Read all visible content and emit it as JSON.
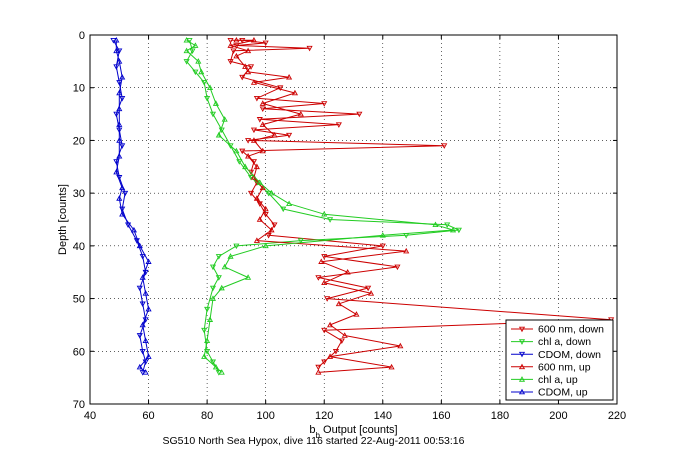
{
  "chart_data": {
    "type": "line",
    "caption": "SG510 North Sea Hypox, dive 116 started 22-Aug-2011 00:53:16",
    "xlabel": "b",
    "xlabel_sub": "b",
    "xlabel_rest": " Output [counts]",
    "ylabel": "Depth [counts]",
    "xlim": [
      40,
      220
    ],
    "ylim": [
      0,
      70
    ],
    "y_reversed": true,
    "grid": true,
    "legend_position": "bottom-right",
    "xticks": [
      "40",
      "60",
      "80",
      "100",
      "120",
      "140",
      "160",
      "180",
      "200",
      "220"
    ],
    "yticks": [
      "0",
      "10",
      "20",
      "30",
      "40",
      "50",
      "60",
      "70"
    ],
    "series": [
      {
        "name": "600 nm, down",
        "color": "#cc0000",
        "marker": "triangle-down",
        "points": [
          [
            88,
            1
          ],
          [
            92,
            1
          ],
          [
            100,
            1.5
          ],
          [
            90,
            2
          ],
          [
            115,
            2.5
          ],
          [
            89,
            3
          ],
          [
            88,
            5
          ],
          [
            95,
            6
          ],
          [
            92,
            8
          ],
          [
            105,
            10
          ],
          [
            97,
            12
          ],
          [
            120,
            13
          ],
          [
            99,
            14
          ],
          [
            132,
            15
          ],
          [
            98,
            16
          ],
          [
            125,
            17
          ],
          [
            96,
            18
          ],
          [
            108,
            19
          ],
          [
            94,
            20
          ],
          [
            161,
            21
          ],
          [
            92,
            22
          ],
          [
            96,
            24
          ],
          [
            95,
            26
          ],
          [
            97,
            28
          ],
          [
            95,
            30
          ],
          [
            98,
            32
          ],
          [
            100,
            34
          ],
          [
            103,
            36
          ],
          [
            101,
            38
          ],
          [
            140,
            40
          ],
          [
            120,
            42
          ],
          [
            145,
            44
          ],
          [
            118,
            46
          ],
          [
            135,
            48
          ],
          [
            121,
            50
          ],
          [
            218,
            54
          ],
          [
            120,
            56
          ],
          [
            126,
            58
          ],
          [
            124,
            60
          ],
          [
            120,
            62
          ],
          [
            118,
            63
          ]
        ]
      },
      {
        "name": "chl a, down",
        "color": "#22cc22",
        "marker": "triangle-down",
        "points": [
          [
            74,
            1
          ],
          [
            75,
            3
          ],
          [
            73,
            5
          ],
          [
            76,
            7
          ],
          [
            79,
            9
          ],
          [
            80,
            12
          ],
          [
            82,
            15
          ],
          [
            85,
            18
          ],
          [
            88,
            21
          ],
          [
            91,
            24
          ],
          [
            95,
            27
          ],
          [
            101,
            30
          ],
          [
            106,
            33
          ],
          [
            122,
            35
          ],
          [
            162,
            36
          ],
          [
            166,
            37
          ],
          [
            148,
            38
          ],
          [
            112,
            39
          ],
          [
            90,
            40
          ],
          [
            84,
            42
          ],
          [
            82,
            44
          ],
          [
            84,
            46
          ],
          [
            82,
            48
          ],
          [
            80,
            52
          ],
          [
            79,
            56
          ],
          [
            80,
            60
          ],
          [
            82,
            62
          ],
          [
            84,
            64
          ]
        ]
      },
      {
        "name": "CDOM, down",
        "color": "#0000cc",
        "marker": "triangle-down",
        "points": [
          [
            48,
            1
          ],
          [
            50,
            3
          ],
          [
            49,
            6
          ],
          [
            50,
            9
          ],
          [
            51,
            12
          ],
          [
            49,
            15
          ],
          [
            50,
            18
          ],
          [
            51,
            21
          ],
          [
            49,
            24
          ],
          [
            50,
            27
          ],
          [
            52,
            30
          ],
          [
            51,
            33
          ],
          [
            53,
            36
          ],
          [
            56,
            39
          ],
          [
            58,
            42
          ],
          [
            59,
            45
          ],
          [
            57,
            48
          ],
          [
            58,
            51
          ],
          [
            59,
            54
          ],
          [
            57,
            57
          ],
          [
            58,
            60
          ],
          [
            59,
            62
          ],
          [
            58,
            64
          ]
        ]
      },
      {
        "name": "600 nm, up",
        "color": "#cc0000",
        "marker": "triangle-up",
        "points": [
          [
            90,
            1
          ],
          [
            96,
            1
          ],
          [
            88,
            2
          ],
          [
            94,
            3
          ],
          [
            90,
            4
          ],
          [
            93,
            6
          ],
          [
            94,
            7
          ],
          [
            108,
            8
          ],
          [
            96,
            9
          ],
          [
            110,
            11
          ],
          [
            99,
            13
          ],
          [
            112,
            15
          ],
          [
            99,
            17
          ],
          [
            103,
            19
          ],
          [
            96,
            20
          ],
          [
            99,
            22
          ],
          [
            94,
            23
          ],
          [
            97,
            25
          ],
          [
            96,
            27
          ],
          [
            99,
            29
          ],
          [
            97,
            31
          ],
          [
            100,
            33
          ],
          [
            98,
            35
          ],
          [
            102,
            37
          ],
          [
            97,
            39
          ],
          [
            148,
            41
          ],
          [
            119,
            43
          ],
          [
            128,
            45
          ],
          [
            120,
            47
          ],
          [
            136,
            49
          ],
          [
            125,
            51
          ],
          [
            131,
            53
          ],
          [
            122,
            55
          ],
          [
            127,
            57
          ],
          [
            146,
            59
          ],
          [
            122,
            61
          ],
          [
            143,
            63
          ],
          [
            118,
            64
          ]
        ]
      },
      {
        "name": "chl a, up",
        "color": "#22cc22",
        "marker": "triangle-up",
        "points": [
          [
            73,
            1
          ],
          [
            76,
            2
          ],
          [
            73,
            3
          ],
          [
            77,
            5
          ],
          [
            78,
            7
          ],
          [
            81,
            10
          ],
          [
            83,
            13
          ],
          [
            86,
            16
          ],
          [
            84,
            19
          ],
          [
            90,
            22
          ],
          [
            93,
            25
          ],
          [
            98,
            28
          ],
          [
            102,
            30
          ],
          [
            108,
            32
          ],
          [
            120,
            34
          ],
          [
            158,
            36
          ],
          [
            164,
            37
          ],
          [
            140,
            38
          ],
          [
            100,
            40
          ],
          [
            88,
            42
          ],
          [
            86,
            44
          ],
          [
            94,
            46
          ],
          [
            85,
            48
          ],
          [
            82,
            50
          ],
          [
            81,
            54
          ],
          [
            80,
            58
          ],
          [
            79,
            61
          ],
          [
            83,
            63
          ],
          [
            85,
            64
          ]
        ]
      },
      {
        "name": "CDOM, up",
        "color": "#0000cc",
        "marker": "triangle-up",
        "points": [
          [
            49,
            1
          ],
          [
            49,
            3
          ],
          [
            50,
            5
          ],
          [
            51,
            8
          ],
          [
            50,
            11
          ],
          [
            50,
            14
          ],
          [
            50,
            17
          ],
          [
            50,
            20
          ],
          [
            50,
            23
          ],
          [
            49,
            26
          ],
          [
            51,
            29
          ],
          [
            50,
            31
          ],
          [
            51,
            34
          ],
          [
            55,
            37
          ],
          [
            57,
            40
          ],
          [
            60,
            43
          ],
          [
            58,
            46
          ],
          [
            59,
            49
          ],
          [
            60,
            52
          ],
          [
            58,
            55
          ],
          [
            59,
            58
          ],
          [
            60,
            61
          ],
          [
            57,
            63
          ],
          [
            59,
            64
          ]
        ]
      }
    ]
  }
}
